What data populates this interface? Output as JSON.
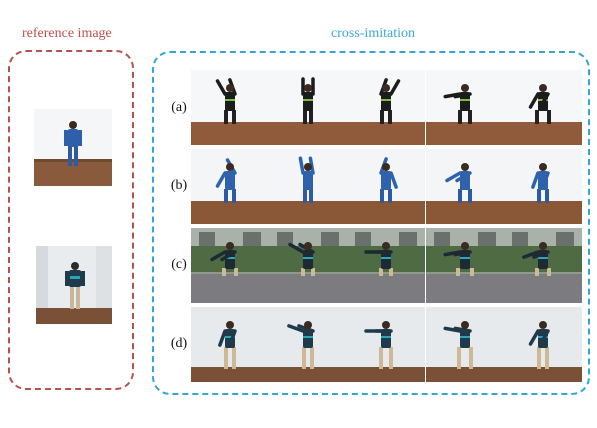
{
  "reference": {
    "title": "reference image",
    "images": [
      "reference-person-blue-suit",
      "reference-person-dark-jacket"
    ]
  },
  "cross": {
    "title": "cross-imitation",
    "rows": [
      {
        "label": "(a)",
        "scene": "black-sweater-wood-floor"
      },
      {
        "label": "(b)",
        "scene": "blue-suit-wood-floor"
      },
      {
        "label": "(c)",
        "scene": "dark-jacket-outdoor"
      },
      {
        "label": "(d)",
        "scene": "dark-jacket-indoor"
      }
    ]
  },
  "colors": {
    "reference_border": "#b5524e",
    "reference_title": "#c0504d",
    "cross_border": "#34a6d6",
    "cross_title": "#3aa8d8"
  }
}
